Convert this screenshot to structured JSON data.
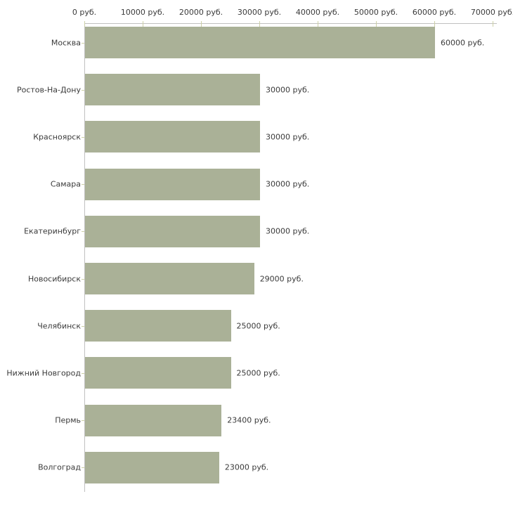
{
  "chart_data": {
    "type": "bar",
    "orientation": "horizontal",
    "title": "",
    "xlabel": "",
    "ylabel": "",
    "grid": false,
    "legend": "none",
    "categories": [
      "Москва",
      "Ростов-На-Дону",
      "Красноярск",
      "Самара",
      "Екатеринбург",
      "Новосибирск",
      "Челябинск",
      "Нижний Новгород",
      "Пермь",
      "Волгоград"
    ],
    "values": [
      60000,
      30000,
      30000,
      30000,
      30000,
      29000,
      25000,
      25000,
      23400,
      23000
    ],
    "value_labels": [
      "60000 руб.",
      "30000 руб.",
      "30000 руб.",
      "30000 руб.",
      "30000 руб.",
      "29000 руб.",
      "25000 руб.",
      "25000 руб.",
      "23400 руб.",
      "23000 руб."
    ],
    "x_axis": {
      "min": 0,
      "max": 70000,
      "tick_interval": 10000,
      "tick_labels": [
        "0 руб.",
        "10000 руб.",
        "20000 руб.",
        "30000 руб.",
        "40000 руб.",
        "50000 руб.",
        "60000 руб.",
        "70000 руб."
      ]
    },
    "colors": {
      "bar": "#aab197",
      "axis": "#c0c0c0",
      "tick": "#cdd0a7",
      "text": "#3a3a3a",
      "background": "#ffffff"
    }
  }
}
